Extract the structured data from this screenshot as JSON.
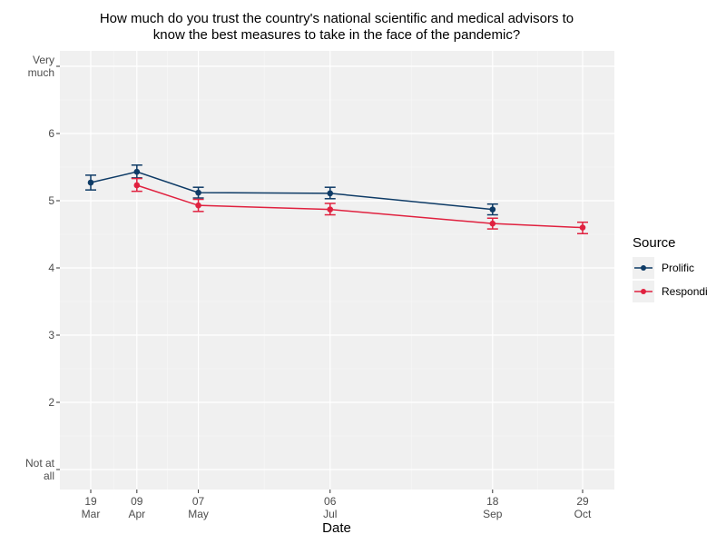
{
  "chart_data": {
    "type": "line",
    "title": "How much do you trust the country's national scientific and medical advisors to know the best measures to take in the face of the pandemic?",
    "title_lines": [
      "How much do you trust the country's national scientific and medical advisors to",
      "know the best measures to take in the face of the pandemic?"
    ],
    "xlabel": "Date",
    "ylabel": "",
    "x_ticks": [
      {
        "day": 0,
        "line1": "19",
        "line2": "Mar"
      },
      {
        "day": 21,
        "line1": "09",
        "line2": "Apr"
      },
      {
        "day": 49,
        "line1": "07",
        "line2": "May"
      },
      {
        "day": 109,
        "line1": "06",
        "line2": "Jul"
      },
      {
        "day": 183,
        "line1": "18",
        "line2": "Sep"
      },
      {
        "day": 224,
        "line1": "29",
        "line2": "Oct"
      }
    ],
    "x_range_days": [
      -14,
      238
    ],
    "y_ticks": [
      {
        "value": 1,
        "lines": [
          "Not at",
          "all"
        ]
      },
      {
        "value": 2,
        "lines": [
          "2"
        ]
      },
      {
        "value": 3,
        "lines": [
          "3"
        ]
      },
      {
        "value": 4,
        "lines": [
          "4"
        ]
      },
      {
        "value": 5,
        "lines": [
          "5"
        ]
      },
      {
        "value": 6,
        "lines": [
          "6"
        ]
      },
      {
        "value": 7,
        "lines": [
          "Very",
          "much"
        ]
      }
    ],
    "ylim": [
      0.7,
      7.2
    ],
    "grid": true,
    "legend": {
      "title": "Source",
      "position": "right"
    },
    "series": [
      {
        "name": "Prolific",
        "color": "#0e3b66",
        "points": [
          {
            "date": "19 Mar",
            "day": 0,
            "value": 5.27,
            "lo": 5.16,
            "hi": 5.38
          },
          {
            "date": "09 Apr",
            "day": 21,
            "value": 5.43,
            "lo": 5.34,
            "hi": 5.53
          },
          {
            "date": "07 May",
            "day": 49,
            "value": 5.12,
            "lo": 5.04,
            "hi": 5.2
          },
          {
            "date": "06 Jul",
            "day": 109,
            "value": 5.11,
            "lo": 5.03,
            "hi": 5.2
          },
          {
            "date": "18 Sep",
            "day": 183,
            "value": 4.87,
            "lo": 4.79,
            "hi": 4.95
          }
        ]
      },
      {
        "name": "Respondi",
        "color": "#e0213f",
        "points": [
          {
            "date": "09 Apr",
            "day": 21,
            "value": 5.23,
            "lo": 5.14,
            "hi": 5.33
          },
          {
            "date": "07 May",
            "day": 49,
            "value": 4.93,
            "lo": 4.84,
            "hi": 5.02
          },
          {
            "date": "06 Jul",
            "day": 109,
            "value": 4.87,
            "lo": 4.79,
            "hi": 4.96
          },
          {
            "date": "18 Sep",
            "day": 183,
            "value": 4.66,
            "lo": 4.58,
            "hi": 4.74
          },
          {
            "date": "29 Oct",
            "day": 224,
            "value": 4.6,
            "lo": 4.51,
            "hi": 4.68
          }
        ]
      }
    ]
  }
}
